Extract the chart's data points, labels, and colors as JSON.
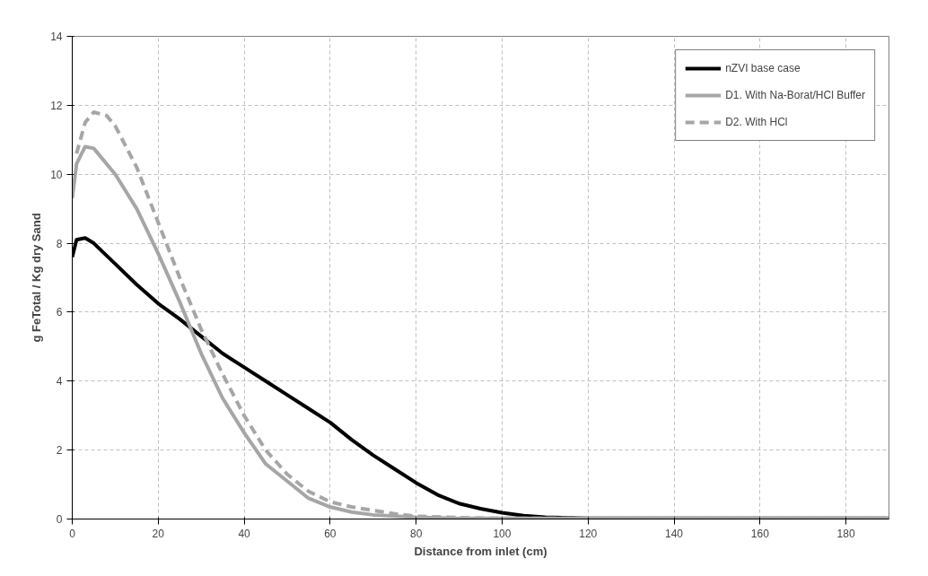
{
  "chart_data": {
    "type": "line",
    "xlabel": "Distance from inlet (cm)",
    "ylabel": "g FeTotal / Kg dry Sand",
    "xlim": [
      0,
      190
    ],
    "ylim": [
      0,
      14
    ],
    "xticks": [
      0,
      20,
      40,
      60,
      80,
      100,
      120,
      140,
      160,
      180
    ],
    "yticks": [
      0,
      2,
      4,
      6,
      8,
      10,
      12,
      14
    ],
    "grid": true,
    "legend": "top right",
    "marker": "none",
    "series": [
      {
        "name": "nZVI base case",
        "color": "#000000",
        "line_style": "solid",
        "x": [
          0,
          1,
          3,
          5,
          10,
          15,
          20,
          25,
          30,
          35,
          40,
          45,
          50,
          55,
          60,
          65,
          70,
          75,
          80,
          85,
          90,
          95,
          100,
          105,
          110,
          120,
          190
        ],
        "values": [
          7.6,
          8.1,
          8.15,
          8.0,
          7.4,
          6.8,
          6.25,
          5.8,
          5.3,
          4.8,
          4.4,
          4.0,
          3.6,
          3.2,
          2.8,
          2.3,
          1.85,
          1.45,
          1.05,
          0.7,
          0.45,
          0.3,
          0.18,
          0.1,
          0.05,
          0.02,
          0.02
        ]
      },
      {
        "name": "D1. With Na-Borat/HCl Buffer",
        "color": "#a6a6a6",
        "line_style": "solid",
        "x": [
          0,
          1,
          3,
          5,
          10,
          15,
          20,
          25,
          30,
          35,
          40,
          45,
          50,
          55,
          60,
          65,
          70,
          80,
          90,
          190
        ],
        "values": [
          9.3,
          10.3,
          10.8,
          10.75,
          10.0,
          9.0,
          7.7,
          6.3,
          4.8,
          3.5,
          2.5,
          1.6,
          1.1,
          0.6,
          0.35,
          0.2,
          0.12,
          0.05,
          0.02,
          0.02
        ]
      },
      {
        "name": "D2. With HCl",
        "color": "#a6a6a6",
        "line_style": "dashed",
        "x": [
          1,
          3,
          5,
          8,
          10,
          15,
          20,
          25,
          30,
          35,
          40,
          45,
          50,
          55,
          60,
          65,
          70,
          75,
          80,
          90,
          100,
          190
        ],
        "values": [
          10.6,
          11.5,
          11.8,
          11.7,
          11.4,
          10.2,
          8.6,
          7.0,
          5.5,
          4.2,
          3.0,
          2.0,
          1.3,
          0.8,
          0.5,
          0.35,
          0.25,
          0.15,
          0.08,
          0.04,
          0.02,
          0.02
        ]
      }
    ]
  }
}
